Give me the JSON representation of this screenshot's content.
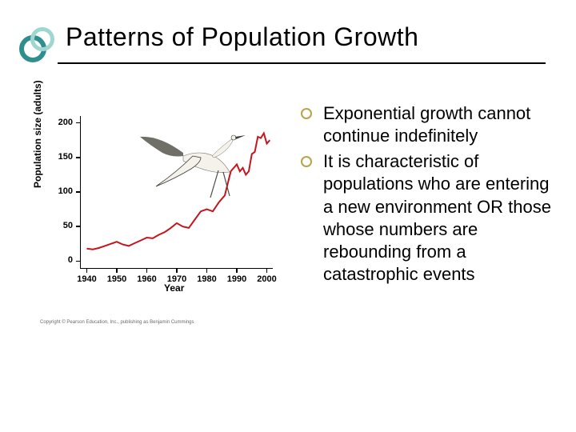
{
  "title": "Patterns of Population Growth",
  "ornament": {
    "outer_color": "#2f8f8f",
    "inner_color": "#9fd6d0"
  },
  "bullets": {
    "ring_color": "#b8a24a",
    "items": [
      "Exponential growth cannot continue indefinitely",
      "It is characteristic of populations who are entering a new environment OR those whose numbers are rebounding from a catastrophic events"
    ]
  },
  "chart": {
    "type": "line",
    "xlabel": "Year",
    "ylabel": "Population size (adults)",
    "xlim": [
      1938,
      2002
    ],
    "ylim": [
      -10,
      210
    ],
    "xticks": [
      1940,
      1950,
      1960,
      1970,
      1980,
      1990,
      2000
    ],
    "yticks": [
      0,
      50,
      100,
      150,
      200
    ],
    "line_color": "#c4151c",
    "line_width": 2,
    "background": "#ffffff",
    "data": [
      [
        1940,
        18
      ],
      [
        1942,
        17
      ],
      [
        1944,
        19
      ],
      [
        1946,
        22
      ],
      [
        1948,
        25
      ],
      [
        1950,
        28
      ],
      [
        1952,
        24
      ],
      [
        1954,
        22
      ],
      [
        1956,
        26
      ],
      [
        1958,
        30
      ],
      [
        1960,
        34
      ],
      [
        1962,
        33
      ],
      [
        1964,
        38
      ],
      [
        1966,
        42
      ],
      [
        1968,
        48
      ],
      [
        1970,
        55
      ],
      [
        1972,
        50
      ],
      [
        1974,
        48
      ],
      [
        1976,
        60
      ],
      [
        1978,
        72
      ],
      [
        1980,
        75
      ],
      [
        1982,
        72
      ],
      [
        1984,
        85
      ],
      [
        1986,
        95
      ],
      [
        1988,
        130
      ],
      [
        1990,
        140
      ],
      [
        1991,
        130
      ],
      [
        1992,
        135
      ],
      [
        1993,
        125
      ],
      [
        1994,
        130
      ],
      [
        1995,
        155
      ],
      [
        1996,
        158
      ],
      [
        1997,
        180
      ],
      [
        1998,
        178
      ],
      [
        1999,
        185
      ],
      [
        2000,
        170
      ],
      [
        2001,
        175
      ]
    ],
    "copyright": "Copyright © Pearson Education, Inc., publishing as Benjamin Cummings"
  },
  "bird": {
    "body_color": "#f4f2ea",
    "shadow_color": "#6f6f68",
    "wing_dark": "#3b3b38",
    "legs_color": "#4a4a46"
  }
}
